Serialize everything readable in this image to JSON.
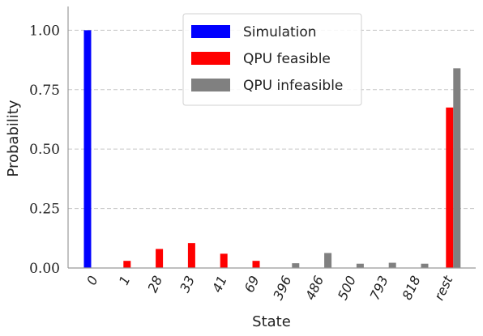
{
  "chart_data": {
    "type": "bar",
    "xlabel": "State",
    "ylabel": "Probability",
    "ylim": [
      0,
      1.1
    ],
    "yticks": [
      "0.00",
      "0.25",
      "0.50",
      "0.75",
      "1.00"
    ],
    "ytick_values": [
      0,
      0.25,
      0.5,
      0.75,
      1.0
    ],
    "grid": "horizontal dashed",
    "legend_position": "top-center",
    "categories": [
      "0",
      "1",
      "28",
      "33",
      "41",
      "69",
      "396",
      "486",
      "500",
      "793",
      "818",
      "rest"
    ],
    "series": [
      {
        "name": "Simulation",
        "color": "#0000ff",
        "values": [
          1.0,
          0,
          0,
          0,
          0,
          0,
          0,
          0,
          0,
          0,
          0,
          0
        ]
      },
      {
        "name": "QPU feasible",
        "color": "#ff0000",
        "values": [
          0,
          0.03,
          0.08,
          0.105,
          0.06,
          0.03,
          0,
          0,
          0,
          0,
          0,
          0.675
        ]
      },
      {
        "name": "QPU infeasible",
        "color": "#808080",
        "values": [
          0,
          0,
          0,
          0,
          0,
          0,
          0.02,
          0.063,
          0.018,
          0.022,
          0.018,
          0.84
        ]
      }
    ]
  }
}
